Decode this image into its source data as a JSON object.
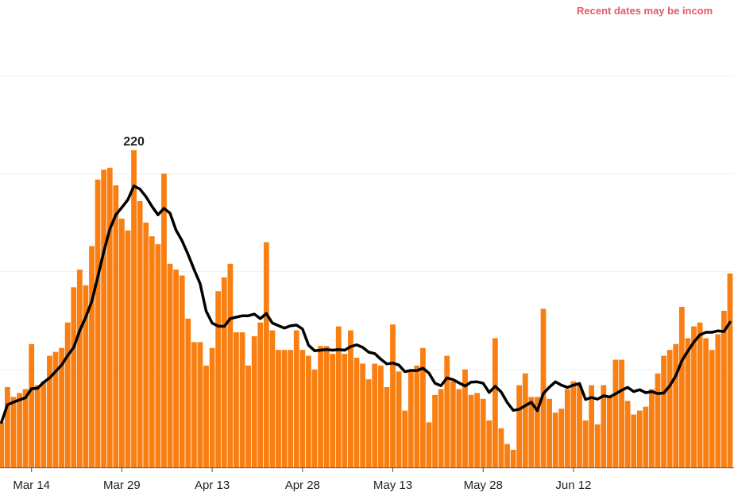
{
  "chart_data": {
    "type": "bar",
    "note": "Recent dates may be incom",
    "peak_label": "220",
    "x_tick_labels": [
      "Mar 14",
      "Mar 29",
      "Apr 13",
      "Apr 28",
      "May 13",
      "May 28",
      "Jun 12"
    ],
    "bar_values": [
      23,
      41,
      36,
      38,
      40,
      63,
      42,
      44,
      57,
      59,
      61,
      74,
      92,
      101,
      93,
      113,
      147,
      152,
      153,
      144,
      127,
      121,
      162,
      136,
      125,
      118,
      114,
      150,
      104,
      101,
      98,
      76,
      64,
      64,
      52,
      61,
      90,
      97,
      104,
      69,
      69,
      52,
      67,
      74,
      115,
      70,
      60,
      60,
      60,
      70,
      60,
      57,
      50,
      62,
      62,
      58,
      72,
      58,
      70,
      56,
      53,
      45,
      53,
      52,
      41,
      73,
      49,
      29,
      50,
      52,
      61,
      23,
      37,
      40,
      57,
      44,
      40,
      50,
      37,
      38,
      35,
      24,
      66,
      20,
      12,
      9,
      42,
      48,
      36,
      36,
      81,
      35,
      28,
      30,
      40,
      44,
      42,
      24,
      42,
      22,
      42,
      36,
      55,
      55,
      34,
      27,
      29,
      31,
      40,
      48,
      57,
      60,
      63,
      82,
      66,
      72,
      74,
      66,
      60,
      68,
      80,
      99
    ]
  },
  "colors": {
    "bar": "#f97f12",
    "line": "#000000",
    "note": "#e25a63",
    "grid": "#f0f0f0",
    "axis": "#555555",
    "text": "#222222"
  }
}
